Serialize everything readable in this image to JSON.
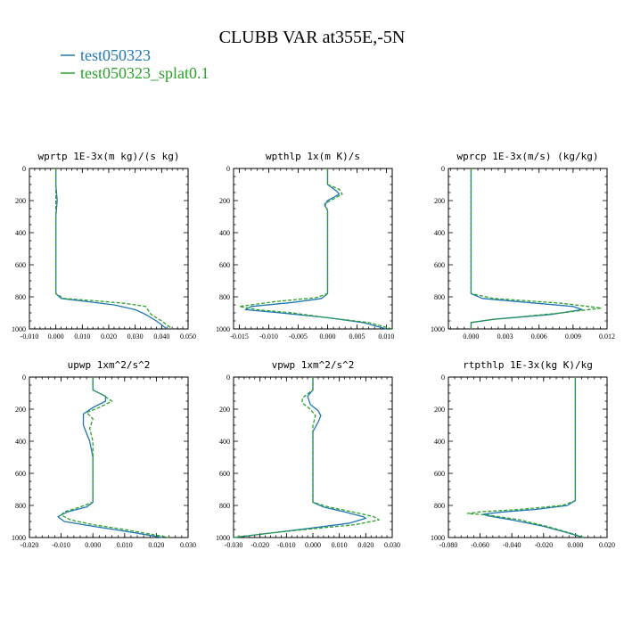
{
  "chart_data": {
    "type": "line",
    "title": "CLUBB VAR at355E,-5N",
    "legend": [
      {
        "name": "test050323",
        "color": "#1f77b4",
        "dash": "solid"
      },
      {
        "name": "test050323_splat0.1",
        "color": "#2ca02c",
        "dash": "dashed"
      }
    ],
    "panels": [
      {
        "title": "wprtp  1E-3x(m kg)/(s kg)",
        "xlim": [
          -0.01,
          0.05
        ],
        "ylim": [
          1000,
          0
        ],
        "xticks": [
          -0.01,
          0.0,
          0.01,
          0.02,
          0.03,
          0.04,
          0.05
        ],
        "xticklabels": [
          "-0.010",
          "0.000",
          "0.010",
          "0.020",
          "0.030",
          "0.040",
          "0.050"
        ],
        "yticks": [
          0,
          200,
          400,
          600,
          800,
          1000
        ],
        "series": [
          {
            "name": "test050323",
            "points": [
              [
                0.0,
                0
              ],
              [
                0.0,
                100
              ],
              [
                0.0005,
                200
              ],
              [
                0.0,
                300
              ],
              [
                0.0,
                500
              ],
              [
                0.0,
                700
              ],
              [
                0.0,
                780
              ],
              [
                0.002,
                810
              ],
              [
                0.012,
                830
              ],
              [
                0.022,
                850
              ],
              [
                0.03,
                880
              ],
              [
                0.034,
                910
              ],
              [
                0.038,
                950
              ],
              [
                0.042,
                1000
              ]
            ]
          },
          {
            "name": "test050323_splat0.1",
            "points": [
              [
                0.0,
                0
              ],
              [
                0.0,
                100
              ],
              [
                0.0,
                200
              ],
              [
                0.0,
                300
              ],
              [
                0.0,
                500
              ],
              [
                0.0,
                700
              ],
              [
                0.0,
                780
              ],
              [
                0.003,
                810
              ],
              [
                0.015,
                825
              ],
              [
                0.026,
                840
              ],
              [
                0.034,
                860
              ],
              [
                0.036,
                910
              ],
              [
                0.04,
                950
              ],
              [
                0.044,
                1000
              ]
            ]
          }
        ]
      },
      {
        "title": "wpthlp  1x(m K)/s",
        "xlim": [
          -0.016,
          0.011
        ],
        "ylim": [
          1000,
          0
        ],
        "xticks": [
          -0.015,
          -0.01,
          -0.005,
          0.0,
          0.005,
          0.01
        ],
        "xticklabels": [
          "-0.015",
          "-0.010",
          "-0.005",
          "0.000",
          "0.005",
          "0.010"
        ],
        "yticks": [
          0,
          200,
          400,
          600,
          800,
          1000
        ],
        "series": [
          {
            "name": "test050323",
            "points": [
              [
                0.0,
                0
              ],
              [
                0.0,
                100
              ],
              [
                0.0015,
                140
              ],
              [
                0.002,
                160
              ],
              [
                0.001,
                180
              ],
              [
                0.0,
                200
              ],
              [
                -0.0005,
                230
              ],
              [
                0.0,
                260
              ],
              [
                0.0,
                400
              ],
              [
                0.0,
                600
              ],
              [
                0.0,
                780
              ],
              [
                -0.001,
                810
              ],
              [
                -0.006,
                835
              ],
              [
                -0.013,
                860
              ],
              [
                -0.014,
                880
              ],
              [
                -0.008,
                900
              ],
              [
                0.0,
                930
              ],
              [
                0.006,
                960
              ],
              [
                0.01,
                1000
              ]
            ]
          },
          {
            "name": "test050323_splat0.1",
            "points": [
              [
                0.0,
                0
              ],
              [
                0.0,
                100
              ],
              [
                0.002,
                130
              ],
              [
                0.0025,
                160
              ],
              [
                0.001,
                190
              ],
              [
                -0.0005,
                220
              ],
              [
                0.0,
                260
              ],
              [
                0.0,
                400
              ],
              [
                0.0,
                600
              ],
              [
                0.0,
                780
              ],
              [
                -0.002,
                805
              ],
              [
                -0.009,
                830
              ],
              [
                -0.015,
                860
              ],
              [
                -0.012,
                880
              ],
              [
                -0.006,
                900
              ],
              [
                0.0,
                930
              ],
              [
                0.007,
                960
              ],
              [
                0.011,
                1000
              ]
            ]
          }
        ]
      },
      {
        "title": "wprcp  1E-3x(m/s) (kg/kg)",
        "xlim": [
          -0.002,
          0.012
        ],
        "ylim": [
          1000,
          0
        ],
        "xticks": [
          0.0,
          0.003,
          0.006,
          0.009,
          0.012
        ],
        "xticklabels": [
          "0.000",
          "0.003",
          "0.006",
          "0.009",
          "0.012"
        ],
        "yticks": [
          0,
          200,
          400,
          600,
          800,
          1000
        ],
        "series": [
          {
            "name": "test050323",
            "points": [
              [
                0.0,
                0
              ],
              [
                0.0,
                200
              ],
              [
                0.0,
                400
              ],
              [
                0.0,
                600
              ],
              [
                0.0,
                780
              ],
              [
                0.001,
                810
              ],
              [
                0.005,
                835
              ],
              [
                0.009,
                860
              ],
              [
                0.0098,
                880
              ],
              [
                0.007,
                910
              ],
              [
                0.002,
                940
              ],
              [
                0.0,
                960
              ],
              [
                0.0,
                1000
              ]
            ]
          },
          {
            "name": "test050323_splat0.1",
            "points": [
              [
                0.0,
                0
              ],
              [
                0.0,
                200
              ],
              [
                0.0,
                400
              ],
              [
                0.0,
                600
              ],
              [
                0.0,
                780
              ],
              [
                0.002,
                810
              ],
              [
                0.008,
                840
              ],
              [
                0.0115,
                870
              ],
              [
                0.008,
                900
              ],
              [
                0.002,
                940
              ],
              [
                0.0,
                960
              ],
              [
                0.0,
                1000
              ]
            ]
          }
        ]
      },
      {
        "title": "upwp  1xm^2/s^2",
        "xlim": [
          -0.02,
          0.03
        ],
        "ylim": [
          1000,
          0
        ],
        "xticks": [
          -0.02,
          -0.01,
          0.0,
          0.01,
          0.02,
          0.03
        ],
        "xticklabels": [
          "-0.020",
          "-0.010",
          "0.000",
          "0.010",
          "0.020",
          "0.030"
        ],
        "yticks": [
          0,
          200,
          400,
          600,
          800,
          1000
        ],
        "series": [
          {
            "name": "test050323",
            "points": [
              [
                0.0,
                0
              ],
              [
                0.0,
                80
              ],
              [
                0.004,
                120
              ],
              [
                0.004,
                150
              ],
              [
                0.0,
                190
              ],
              [
                -0.003,
                230
              ],
              [
                -0.003,
                300
              ],
              [
                -0.001,
                400
              ],
              [
                0.0,
                500
              ],
              [
                0.0,
                700
              ],
              [
                0.0,
                780
              ],
              [
                -0.002,
                810
              ],
              [
                -0.008,
                840
              ],
              [
                -0.011,
                870
              ],
              [
                -0.009,
                900
              ],
              [
                0.0,
                930
              ],
              [
                0.01,
                960
              ],
              [
                0.022,
                1000
              ]
            ]
          },
          {
            "name": "test050323_splat0.1",
            "points": [
              [
                0.0,
                0
              ],
              [
                0.0,
                80
              ],
              [
                0.003,
                110
              ],
              [
                0.006,
                150
              ],
              [
                0.002,
                190
              ],
              [
                -0.002,
                220
              ],
              [
                0.0,
                260
              ],
              [
                -0.001,
                320
              ],
              [
                0.0,
                400
              ],
              [
                0.0,
                500
              ],
              [
                0.0,
                700
              ],
              [
                0.0,
                780
              ],
              [
                -0.004,
                810
              ],
              [
                -0.009,
                840
              ],
              [
                -0.01,
                860
              ],
              [
                -0.007,
                890
              ],
              [
                0.0,
                920
              ],
              [
                0.01,
                950
              ],
              [
                0.024,
                1000
              ]
            ]
          }
        ]
      },
      {
        "title": "vpwp  1xm^2/s^2",
        "xlim": [
          -0.03,
          0.03
        ],
        "ylim": [
          1000,
          0
        ],
        "xticks": [
          -0.03,
          -0.02,
          -0.01,
          0.0,
          0.01,
          0.02,
          0.03
        ],
        "xticklabels": [
          "-0.030",
          "-0.020",
          "-0.010",
          "0.000",
          "0.010",
          "0.020",
          "0.030"
        ],
        "yticks": [
          0,
          200,
          400,
          600,
          800,
          1000
        ],
        "series": [
          {
            "name": "test050323",
            "points": [
              [
                0.0,
                0
              ],
              [
                0.0,
                80
              ],
              [
                -0.002,
                120
              ],
              [
                -0.001,
                170
              ],
              [
                0.002,
                210
              ],
              [
                0.003,
                240
              ],
              [
                0.002,
                280
              ],
              [
                0.0,
                340
              ],
              [
                0.0,
                400
              ],
              [
                0.0,
                600
              ],
              [
                0.0,
                780
              ],
              [
                0.004,
                810
              ],
              [
                0.012,
                840
              ],
              [
                0.019,
                870
              ],
              [
                0.02,
                880
              ],
              [
                0.014,
                910
              ],
              [
                0.0,
                940
              ],
              [
                -0.015,
                970
              ],
              [
                -0.03,
                1000
              ]
            ]
          },
          {
            "name": "test050323_splat0.1",
            "points": [
              [
                0.0,
                0
              ],
              [
                0.0,
                80
              ],
              [
                -0.004,
                130
              ],
              [
                -0.004,
                160
              ],
              [
                -0.001,
                200
              ],
              [
                0.001,
                240
              ],
              [
                0.0,
                300
              ],
              [
                0.0,
                400
              ],
              [
                0.0,
                600
              ],
              [
                0.0,
                780
              ],
              [
                0.006,
                810
              ],
              [
                0.015,
                840
              ],
              [
                0.023,
                870
              ],
              [
                0.025,
                890
              ],
              [
                0.016,
                920
              ],
              [
                0.0,
                945
              ],
              [
                -0.015,
                970
              ],
              [
                -0.03,
                1000
              ]
            ]
          }
        ]
      },
      {
        "title": "rtpthlp  1E-3x(kg K)/kg",
        "xlim": [
          -0.08,
          0.02
        ],
        "ylim": [
          1000,
          0
        ],
        "xticks": [
          -0.08,
          -0.06,
          -0.04,
          -0.02,
          0.0,
          0.02
        ],
        "xticklabels": [
          "-0.080",
          "-0.060",
          "-0.040",
          "-0.020",
          "0.000",
          "0.020"
        ],
        "yticks": [
          0,
          200,
          400,
          600,
          800,
          1000
        ],
        "series": [
          {
            "name": "test050323",
            "points": [
              [
                0.0,
                0
              ],
              [
                0.0,
                200
              ],
              [
                0.0,
                400
              ],
              [
                0.0,
                600
              ],
              [
                0.0,
                770
              ],
              [
                -0.005,
                800
              ],
              [
                -0.025,
                825
              ],
              [
                -0.045,
                840
              ],
              [
                -0.058,
                855
              ],
              [
                -0.055,
                865
              ],
              [
                -0.04,
                890
              ],
              [
                -0.02,
                930
              ],
              [
                -0.005,
                970
              ],
              [
                0.005,
                1000
              ]
            ]
          },
          {
            "name": "test050323_splat0.1",
            "points": [
              [
                0.0,
                0
              ],
              [
                0.0,
                200
              ],
              [
                0.0,
                400
              ],
              [
                0.0,
                600
              ],
              [
                0.0,
                770
              ],
              [
                -0.008,
                800
              ],
              [
                -0.035,
                825
              ],
              [
                -0.06,
                840
              ],
              [
                -0.068,
                850
              ],
              [
                -0.055,
                860
              ],
              [
                -0.035,
                890
              ],
              [
                -0.018,
                930
              ],
              [
                -0.004,
                970
              ],
              [
                0.006,
                1000
              ]
            ]
          }
        ]
      }
    ]
  }
}
